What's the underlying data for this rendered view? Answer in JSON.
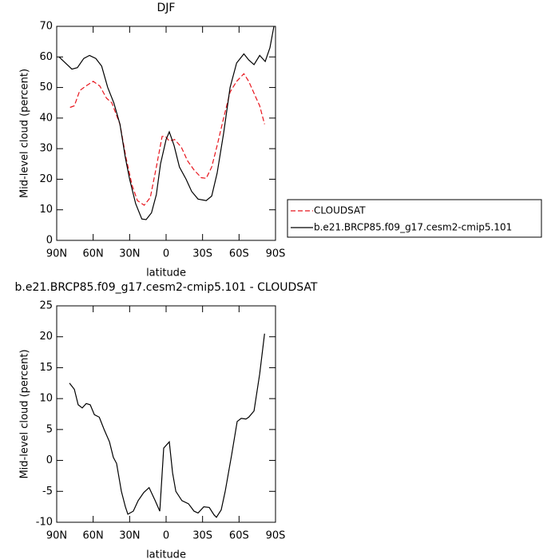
{
  "chart_data": [
    {
      "type": "line",
      "title": "DJF",
      "xlabel": "latitude",
      "ylabel": "Mid-level cloud (percent)",
      "xlim": [
        90,
        -90
      ],
      "xticks": [
        {
          "value": 90,
          "label": "90N"
        },
        {
          "value": 60,
          "label": "60N"
        },
        {
          "value": 30,
          "label": "30N"
        },
        0,
        {
          "value": -30,
          "label": "30S"
        },
        {
          "value": -60,
          "label": "60S"
        },
        {
          "value": -90,
          "label": "90S"
        }
      ],
      "ylim": [
        0,
        70
      ],
      "yticks": [
        0,
        10,
        20,
        30,
        40,
        50,
        60,
        70
      ],
      "legend": "right",
      "series": [
        {
          "name": "CLOUDSAT",
          "color": "#e8141c",
          "dash": true,
          "x": [
            79,
            75.5,
            71,
            66,
            60,
            54.5,
            49,
            44.7,
            38,
            33,
            28,
            23.6,
            18,
            13,
            8,
            3.3,
            0.6,
            -2.6,
            -7,
            -12.5,
            -17.7,
            -23,
            -29,
            -33,
            -37.5,
            -42,
            -47.3,
            -52.6,
            -58,
            -64,
            -68,
            -73.6,
            -77,
            -81
          ],
          "values": [
            43.5,
            44,
            49,
            50.5,
            52,
            50.5,
            46.5,
            45,
            38,
            27,
            18,
            13,
            11.5,
            14,
            24,
            34,
            34,
            32.5,
            33,
            30.5,
            26,
            23,
            20.5,
            20.3,
            24,
            31,
            40,
            48.5,
            52,
            54.5,
            52,
            47,
            44,
            38
          ]
        },
        {
          "name": "b.e21.BRCP85.f09_g17.cesm2-cmip5.101",
          "color": "#000000",
          "dash": false,
          "x": [
            88,
            77.5,
            73,
            67.7,
            63,
            57.8,
            53,
            48,
            43,
            38,
            33.5,
            30,
            25,
            20,
            16.4,
            12,
            8,
            4.6,
            0,
            -2.6,
            -6.6,
            -11,
            -16.4,
            -21,
            -26.3,
            -33,
            -37.5,
            -42,
            -47.3,
            -52.6,
            -58,
            -64,
            -68,
            -72.3,
            -77,
            -81.5,
            -85.4,
            -88.7
          ],
          "values": [
            60,
            56,
            56.5,
            59.5,
            60.5,
            59.5,
            57,
            50,
            45,
            38,
            27,
            20,
            12,
            7,
            6.8,
            9,
            15,
            25,
            33,
            35.5,
            31,
            24,
            20,
            16,
            13.5,
            13,
            14.5,
            22,
            35,
            50,
            58,
            61,
            59,
            57.5,
            60.5,
            58.5,
            63,
            70
          ]
        }
      ]
    },
    {
      "type": "line",
      "title": "b.e21.BRCP85.f09_g17.cesm2-cmip5.101 - CLOUDSAT",
      "xlabel": "latitude",
      "ylabel": "Mid-level cloud (percent)",
      "xlim": [
        90,
        -90
      ],
      "xticks": [
        {
          "value": 90,
          "label": "90N"
        },
        {
          "value": 60,
          "label": "60N"
        },
        {
          "value": 30,
          "label": "30N"
        },
        0,
        {
          "value": -30,
          "label": "30S"
        },
        {
          "value": -60,
          "label": "60S"
        },
        {
          "value": -90,
          "label": "90S"
        }
      ],
      "ylim": [
        -10,
        25
      ],
      "yticks": [
        -10,
        -5,
        0,
        5,
        10,
        15,
        20,
        25
      ],
      "color": "#000000",
      "x": [
        79.5,
        75.5,
        72.3,
        69,
        65.7,
        62.4,
        59,
        55,
        51,
        46.6,
        43.4,
        40.7,
        36.8,
        33.5,
        31.5,
        27,
        23,
        18.4,
        14,
        9,
        5.2,
        2,
        -2.6,
        -5.3,
        -8,
        -13,
        -18.4,
        -23,
        -26.3,
        -31,
        -35.5,
        -39.4,
        -41.4,
        -45.3,
        -48.6,
        -54,
        -58.5,
        -61.8,
        -65.7,
        -68,
        -72.3,
        -77,
        -81
      ],
      "values": [
        12.5,
        11.5,
        9,
        8.5,
        9.2,
        9,
        7.4,
        7,
        5,
        3,
        0.5,
        -0.5,
        -5,
        -7.5,
        -8.7,
        -8.2,
        -6.5,
        -5.2,
        -4.4,
        -6.5,
        -8.2,
        2,
        3,
        -2,
        -5,
        -6.5,
        -7,
        -8.2,
        -8.5,
        -7.5,
        -7.6,
        -8.8,
        -9.2,
        -8,
        -5,
        1,
        6.3,
        6.8,
        6.7,
        7,
        8,
        14,
        20.5
      ]
    }
  ]
}
